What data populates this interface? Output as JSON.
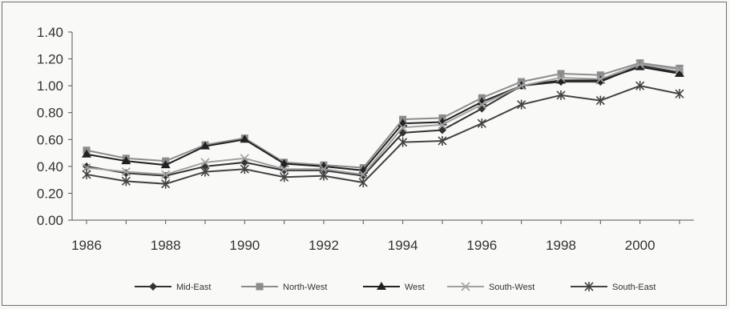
{
  "chart_data": {
    "type": "line",
    "title": "",
    "xlabel": "",
    "ylabel": "",
    "x": [
      1986,
      1987,
      1988,
      1989,
      1990,
      1991,
      1992,
      1993,
      1994,
      1995,
      1996,
      1997,
      1998,
      1999,
      2000,
      2001
    ],
    "x_tick_labels": [
      "1986",
      "1988",
      "1990",
      "1992",
      "1994",
      "1996",
      "1998",
      "2000"
    ],
    "y_tick_labels": [
      "0.00",
      "0.20",
      "0.40",
      "0.60",
      "0.80",
      "1.00",
      "1.20",
      "1.40"
    ],
    "ylim": [
      0,
      1.4
    ],
    "grid": false,
    "legend_position": "bottom",
    "series": [
      {
        "name": "Mid-East",
        "marker": "diamond",
        "color": "#333333",
        "values": [
          0.4,
          0.35,
          0.33,
          0.4,
          0.43,
          0.37,
          0.37,
          0.33,
          0.65,
          0.67,
          0.83,
          1.0,
          1.03,
          1.03,
          1.15,
          1.1
        ]
      },
      {
        "name": "North-West",
        "marker": "square",
        "color": "#8c8c8c",
        "values": [
          0.52,
          0.46,
          0.44,
          0.56,
          0.61,
          0.43,
          0.41,
          0.39,
          0.75,
          0.76,
          0.91,
          1.03,
          1.09,
          1.08,
          1.17,
          1.13
        ]
      },
      {
        "name": "West",
        "marker": "triangle",
        "color": "#222222",
        "values": [
          0.49,
          0.44,
          0.41,
          0.55,
          0.6,
          0.42,
          0.4,
          0.37,
          0.72,
          0.73,
          0.88,
          1.0,
          1.04,
          1.04,
          1.14,
          1.09
        ]
      },
      {
        "name": "South-West",
        "marker": "x",
        "color": "#a0a0a0",
        "values": [
          0.39,
          0.36,
          0.34,
          0.43,
          0.46,
          0.38,
          0.38,
          0.34,
          0.69,
          0.71,
          0.86,
          1.0,
          1.06,
          1.05,
          1.16,
          1.12
        ]
      },
      {
        "name": "South-East",
        "marker": "asterisk",
        "color": "#444444",
        "values": [
          0.34,
          0.29,
          0.27,
          0.36,
          0.38,
          0.32,
          0.33,
          0.28,
          0.58,
          0.59,
          0.72,
          0.86,
          0.93,
          0.89,
          1.0,
          0.94
        ]
      }
    ]
  }
}
